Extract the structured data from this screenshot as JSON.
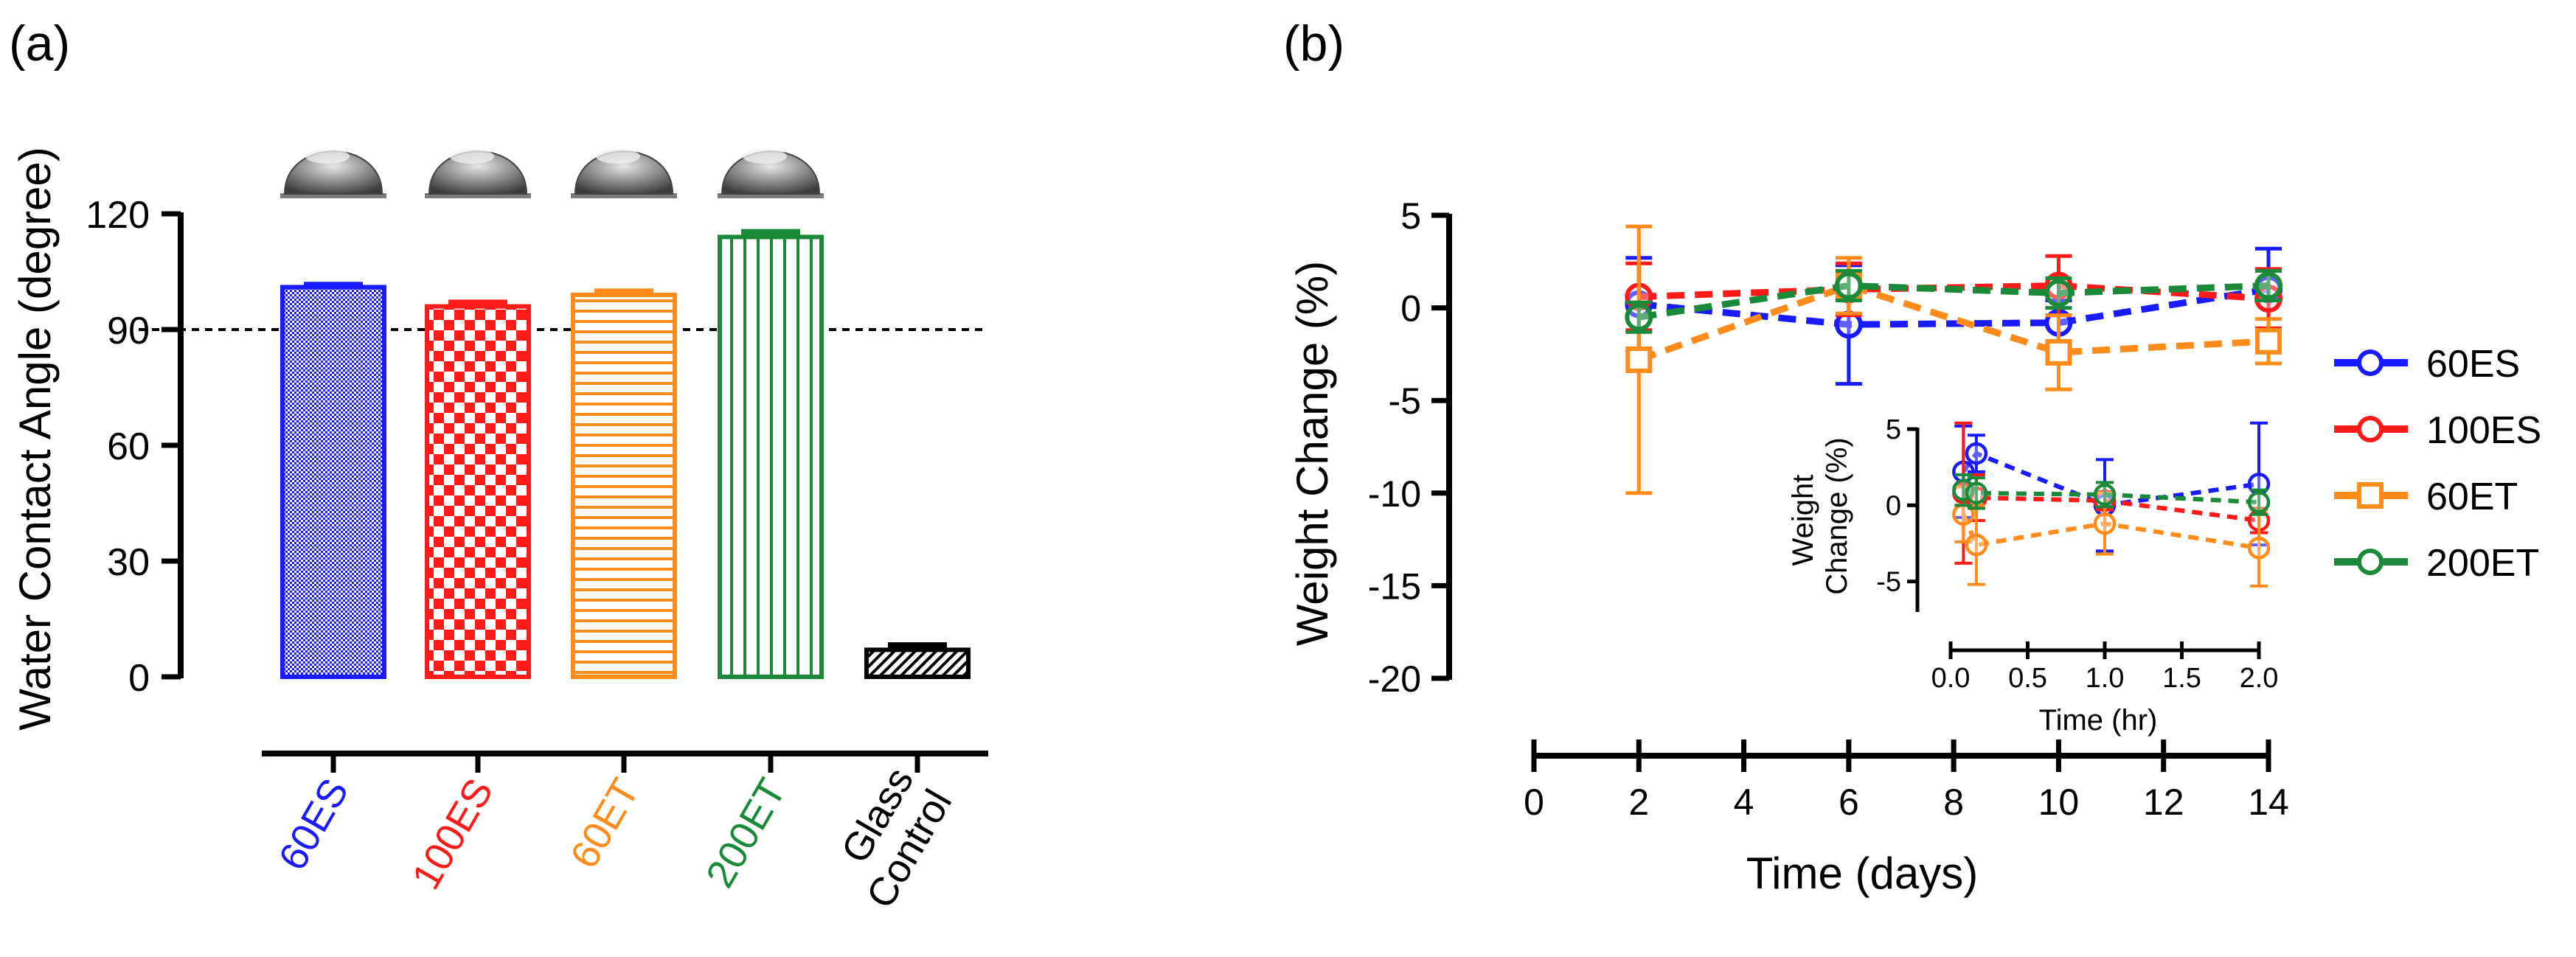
{
  "panels": [
    {
      "label": "(a)"
    },
    {
      "label": "(b)"
    }
  ],
  "colors": {
    "60ES": "#1a1aff",
    "100ES": "#ff1a1a",
    "60ET": "#ff8c1a",
    "200ET": "#1a8a3a",
    "Glass Control": "#000000"
  },
  "chart_data": [
    {
      "type": "bar",
      "ylabel": "Water Contact Angle (degree)",
      "ylim": [
        0,
        120
      ],
      "yticks": [
        "0",
        "30",
        "60",
        "90",
        "120"
      ],
      "reference_line": 90,
      "categories": [
        "60ES",
        "100ES",
        "60ET",
        "200ET",
        "Glass Control"
      ],
      "category_lines": [
        [
          "60ES"
        ],
        [
          "100ES"
        ],
        [
          "60ET"
        ],
        [
          "200ET"
        ],
        [
          "Glass",
          "Control"
        ]
      ],
      "values": [
        101,
        96,
        99,
        114,
        7
      ],
      "errors": [
        0.6,
        1.0,
        0.9,
        1.3,
        1.2
      ],
      "patterns": [
        "dots",
        "checker",
        "hlines",
        "vlines",
        "diagonal"
      ]
    },
    {
      "type": "line",
      "xlabel": "Time (days)",
      "ylabel": "Weight Change (%)",
      "xlim": [
        0,
        14
      ],
      "ylim": [
        -20,
        5
      ],
      "xticks": [
        "0",
        "2",
        "4",
        "6",
        "8",
        "10",
        "12",
        "14"
      ],
      "yticks": [
        "-20",
        "-15",
        "-10",
        "-5",
        "0",
        "5"
      ],
      "legend": "right",
      "x": [
        2,
        6,
        10,
        14
      ],
      "series": [
        {
          "name": "60ES",
          "marker": "circle",
          "values": [
            0.2,
            -0.9,
            -0.8,
            1.0
          ],
          "err": [
            2.5,
            3.2,
            1.2,
            2.2
          ]
        },
        {
          "name": "100ES",
          "marker": "circle",
          "values": [
            0.6,
            1.0,
            1.2,
            0.5
          ],
          "err": [
            1.8,
            1.4,
            1.6,
            1.6
          ]
        },
        {
          "name": "60ET",
          "marker": "square",
          "values": [
            -2.8,
            1.2,
            -2.4,
            -1.8
          ],
          "err": [
            7.2,
            1.5,
            2.0,
            1.2
          ]
        },
        {
          "name": "200ET",
          "marker": "circle",
          "values": [
            -0.5,
            1.2,
            0.8,
            1.2
          ],
          "err": [
            0.8,
            0.8,
            0.8,
            0.8
          ]
        }
      ],
      "inset": {
        "xlabel": "Time (hr)",
        "ylabel_lines": [
          "Weight",
          "Change (%)"
        ],
        "xlim": [
          0,
          2
        ],
        "ylim": [
          -7,
          5
        ],
        "xticks": [
          "0.0",
          "0.5",
          "1.0",
          "1.5",
          "2.0"
        ],
        "yticks": [
          "-5",
          "0",
          "5"
        ],
        "x": [
          0.083,
          0.167,
          1.0,
          2.0
        ],
        "series": [
          {
            "name": "60ES",
            "values": [
              2.2,
              3.4,
              0.0,
              1.4
            ],
            "err": [
              3.0,
              1.2,
              3.0,
              4.0
            ]
          },
          {
            "name": "100ES",
            "values": [
              0.8,
              0.5,
              0.3,
              -1.0
            ],
            "err": [
              4.6,
              1.5,
              0.6,
              0.8
            ]
          },
          {
            "name": "60ET",
            "values": [
              -0.6,
              -2.6,
              -1.2,
              -2.8
            ],
            "err": [
              1.8,
              2.6,
              2.0,
              2.5
            ]
          },
          {
            "name": "200ET",
            "values": [
              1.0,
              0.8,
              0.7,
              0.2
            ],
            "err": [
              1.0,
              1.0,
              0.8,
              0.8
            ]
          }
        ]
      }
    }
  ]
}
